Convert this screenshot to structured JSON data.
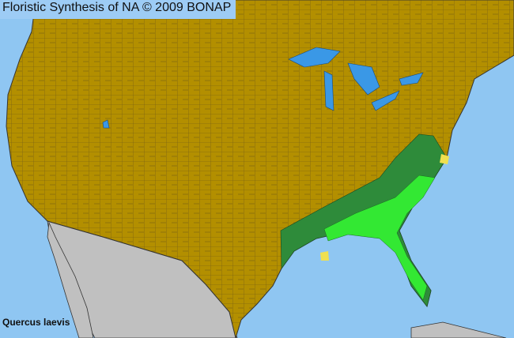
{
  "map": {
    "title": "Floristic Synthesis of NA © 2009 BONAP",
    "species": "Quercus laevis",
    "colors": {
      "ocean": "#8fc6f2",
      "land_absent": "#b38f00",
      "outside_range": "#c0c0c0",
      "present_native": "#2e8b3a",
      "present_common": "#33e833",
      "rare": "#f0e050",
      "lakes": "#3a98e6",
      "county_lines": "#5a4a20"
    }
  }
}
